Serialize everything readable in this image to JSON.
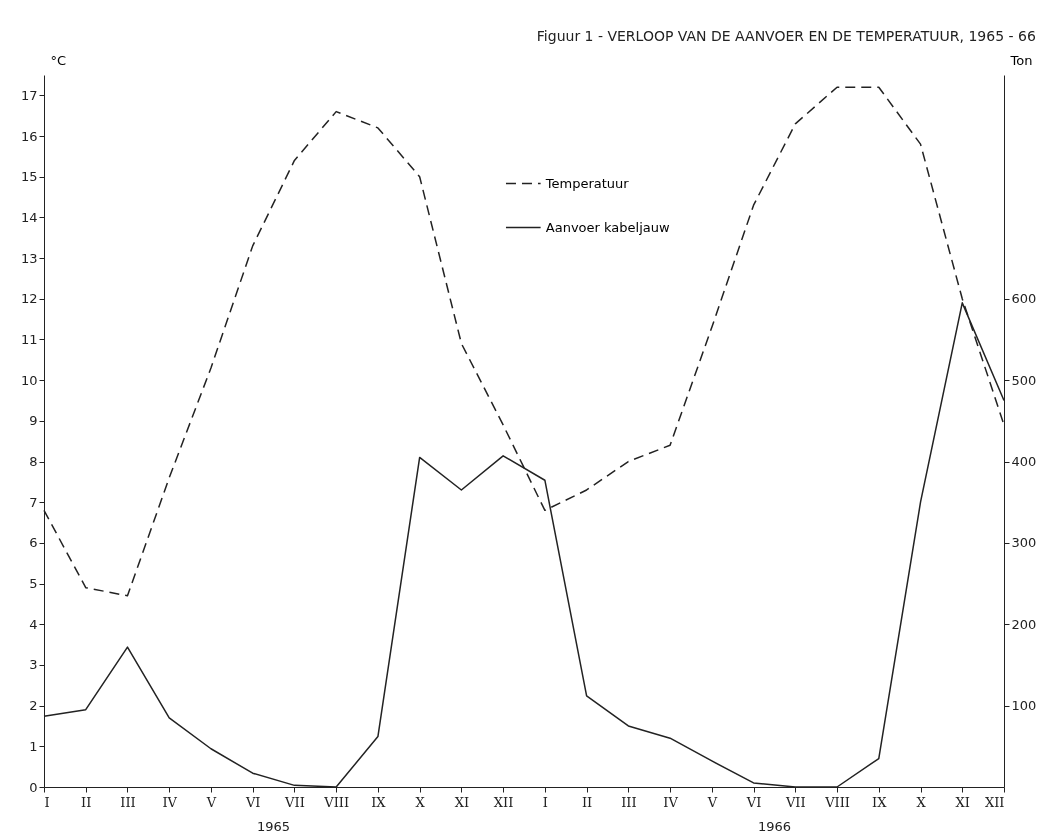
{
  "chart_data": {
    "type": "line",
    "title": "Figuur 1 - VERLOOP VAN DE AANVOER EN DE TEMPERATUUR, 1965 - 66",
    "ylabel": "°C",
    "y2label": "Ton",
    "categories": [
      "I",
      "II",
      "III",
      "IV",
      "V",
      "VI",
      "VII",
      "VIII",
      "IX",
      "X",
      "XI",
      "XII",
      "I",
      "II",
      "III",
      "IV",
      "V",
      "VI",
      "VII",
      "VIII",
      "IX",
      "X",
      "XI",
      "XII"
    ],
    "series": [
      {
        "name": "Temperatuur",
        "color": "#222222",
        "line_style": "dashed",
        "values": [
          6.8,
          4.9,
          4.7,
          7.6,
          10.3,
          13.3,
          15.4,
          16.6,
          16.2,
          15.0,
          10.9,
          8.9,
          6.8,
          7.3,
          8.0,
          8.4,
          11.3,
          14.3,
          16.3,
          17.2,
          17.2,
          15.8,
          12.0,
          8.9
        ]
      },
      {
        "name": "Aanvoer kabeljauw",
        "color": "#222222",
        "line_style": "solid",
        "axis": "y2",
        "values": [
          87,
          95,
          172,
          85,
          47,
          17,
          2,
          0,
          62,
          405,
          365,
          407,
          377,
          112,
          75,
          60,
          32,
          5,
          0,
          0,
          35,
          350,
          595,
          475
        ]
      }
    ],
    "ylim": [
      0,
      17.5
    ],
    "yticks": [
      0,
      1,
      2,
      3,
      4,
      5,
      6,
      7,
      8,
      9,
      10,
      11,
      12,
      13,
      14,
      15,
      16,
      17
    ],
    "y2lim": [
      0,
      875
    ],
    "y2ticks": [
      100,
      200,
      300,
      400,
      500,
      600
    ],
    "annotations": [
      "1965",
      "1966"
    ],
    "legend": "top",
    "grid": false,
    "marker": "none"
  }
}
